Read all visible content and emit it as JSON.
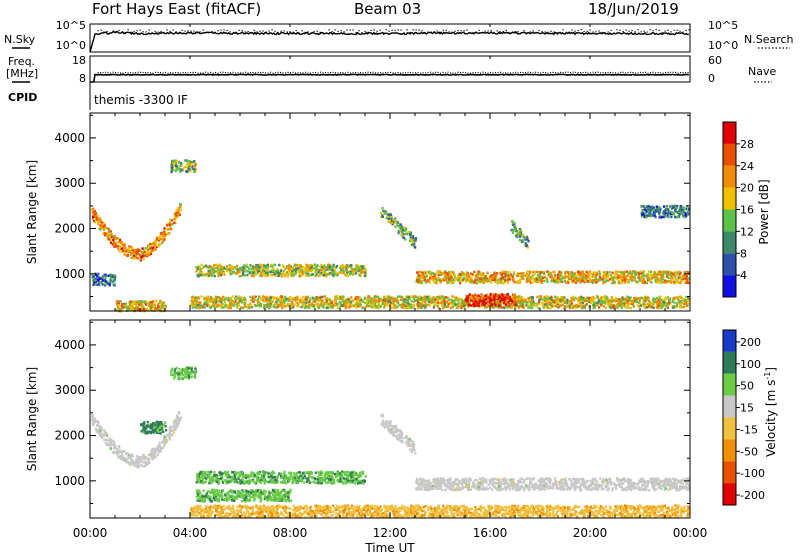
{
  "header": {
    "station": "Fort Hays East (fitACF)",
    "beam": "Beam 03",
    "date": "18/Jun/2019"
  },
  "noise_panel": {
    "left_label": "N.Sky",
    "left_ticks": [
      "10^5",
      "10^0"
    ],
    "right_label": "N.Search",
    "right_ticks": [
      "10^5",
      "10^0"
    ]
  },
  "freq_panel": {
    "left_label_line1": "Freq.",
    "left_label_line2": "[MHz]",
    "left_ticks": [
      "18",
      "8"
    ],
    "right_label": "Nave",
    "right_ticks": [
      "60",
      "0"
    ]
  },
  "cpid": {
    "label": "CPID",
    "value": "themis -3300 IF"
  },
  "panels": {
    "power": {
      "ylabel": "Slant Range [km]",
      "y_ticks": [
        "1000",
        "2000",
        "3000",
        "4000"
      ],
      "colorbar_label": "Power [dB]",
      "colorbar_ticks": [
        "4",
        "8",
        "12",
        "16",
        "20",
        "24",
        "28"
      ]
    },
    "velocity": {
      "ylabel": "Slant Range [km]",
      "y_ticks": [
        "1000",
        "2000",
        "3000",
        "4000"
      ],
      "colorbar_label": "Velocity [m s",
      "colorbar_label_sup": "-1",
      "colorbar_label_end": "]",
      "colorbar_ticks": [
        "200",
        "100",
        "50",
        "15",
        "-15",
        "-50",
        "-100",
        "-200"
      ]
    }
  },
  "x_axis": {
    "label": "Time UT",
    "ticks": [
      "00:00",
      "04:00",
      "08:00",
      "12:00",
      "16:00",
      "20:00",
      "00:00"
    ]
  },
  "colors": {
    "power_scale": [
      "#1010e0",
      "#2e50a8",
      "#3c8a6a",
      "#5cc24a",
      "#f0c000",
      "#f08c00",
      "#e85000",
      "#e00000"
    ],
    "velocity_scale": [
      "#1a3ac8",
      "#2f7a58",
      "#6acc44",
      "#c8c8c8",
      "#f0c040",
      "#f09000",
      "#e85000",
      "#e00000"
    ],
    "ground_scatter": "#c8c8c8"
  },
  "chart_data": [
    {
      "type": "line",
      "title": "",
      "series": [
        {
          "name": "N.Sky",
          "x": [
            0.0,
            0.2,
            1.0,
            2.0,
            4.0,
            8.0,
            12.0,
            16.0,
            20.0,
            24.0
          ],
          "values": [
            0,
            3.2,
            3.5,
            3.3,
            3.4,
            3.3,
            3.3,
            3.4,
            3.3,
            3.3
          ]
        }
      ],
      "xlim": [
        0,
        24
      ],
      "ylabel": "N.Sky",
      "y_scale": "log"
    },
    {
      "type": "line",
      "title": "",
      "series": [
        {
          "name": "Freq.",
          "x": [
            0.0,
            0.2,
            4.0,
            8.0,
            12.0,
            16.0,
            20.0,
            24.0
          ],
          "values": [
            8,
            10.8,
            10.8,
            10.8,
            10.8,
            10.8,
            10.8,
            10.8
          ]
        }
      ],
      "xlim": [
        0,
        24
      ],
      "ylim": [
        8,
        18
      ],
      "ylabel": "Freq. [MHz]"
    },
    {
      "type": "heatmap",
      "title": "",
      "xlabel": "Time UT",
      "ylabel": "Slant Range [km]",
      "xlim": [
        0,
        24
      ],
      "ylim": [
        180,
        4550
      ],
      "colorbar_label": "Power [dB]",
      "colorbar_range": [
        0,
        30
      ],
      "features": [
        {
          "t_start": 0.0,
          "t_end": 3.6,
          "range_start": 2400,
          "range_min": 1450,
          "range_end": 2500,
          "power_db": 22
        },
        {
          "t_start": 0.0,
          "t_end": 1.0,
          "range_start": 900,
          "range_end": 900,
          "power_db": 8
        },
        {
          "t_start": 1.0,
          "t_end": 3.0,
          "range_start": 300,
          "range_end": 300,
          "power_db": 20
        },
        {
          "t_start": 3.2,
          "t_end": 4.2,
          "range_start": 3400,
          "range_end": 3400,
          "power_db": 14
        },
        {
          "t_start": 4.2,
          "t_end": 11.0,
          "range_start": 1100,
          "range_end": 1100,
          "power_db": 16
        },
        {
          "t_start": 4.0,
          "t_end": 24.0,
          "range_start": 400,
          "range_end": 400,
          "power_db": 18
        },
        {
          "t_start": 11.6,
          "t_end": 13.0,
          "range_start": 2400,
          "range_end": 1700,
          "power_db": 12
        },
        {
          "t_start": 13.0,
          "t_end": 24.0,
          "range_start": 950,
          "range_end": 950,
          "power_db": 20
        },
        {
          "t_start": 15.0,
          "t_end": 17.0,
          "range_start": 450,
          "range_end": 450,
          "power_db": 28
        },
        {
          "t_start": 16.8,
          "t_end": 17.5,
          "range_start": 2100,
          "range_end": 1700,
          "power_db": 12
        },
        {
          "t_start": 22.0,
          "t_end": 24.0,
          "range_start": 2400,
          "range_end": 2400,
          "power_db": 8
        }
      ]
    },
    {
      "type": "heatmap",
      "title": "",
      "xlabel": "Time UT",
      "ylabel": "Slant Range [km]",
      "xlim": [
        0,
        24
      ],
      "ylim": [
        180,
        4550
      ],
      "colorbar_label": "Velocity [m s-1]",
      "colorbar_levels": [
        -200,
        -100,
        -50,
        -15,
        15,
        50,
        100,
        200
      ],
      "features": [
        {
          "t_start": 0.0,
          "t_end": 3.6,
          "range_start": 2400,
          "range_min": 1450,
          "range_end": 2500,
          "velocity": 0
        },
        {
          "t_start": 2.0,
          "t_end": 3.0,
          "range_start": 2200,
          "range_end": 2200,
          "velocity": 60
        },
        {
          "t_start": 4.2,
          "t_end": 11.0,
          "range_start": 1100,
          "range_end": 1100,
          "velocity": 40
        },
        {
          "t_start": 4.2,
          "t_end": 8.0,
          "range_start": 700,
          "range_end": 700,
          "velocity": 40
        },
        {
          "t_start": 4.0,
          "t_end": 24.0,
          "range_start": 350,
          "range_end": 350,
          "velocity": -40
        },
        {
          "t_start": 11.6,
          "t_end": 13.0,
          "range_start": 2400,
          "range_end": 1700,
          "velocity": 0
        },
        {
          "t_start": 13.0,
          "t_end": 24.0,
          "range_start": 950,
          "range_end": 950,
          "velocity": 0
        },
        {
          "t_start": 3.2,
          "t_end": 4.2,
          "range_start": 3400,
          "range_end": 3400,
          "velocity": 40
        }
      ]
    }
  ]
}
